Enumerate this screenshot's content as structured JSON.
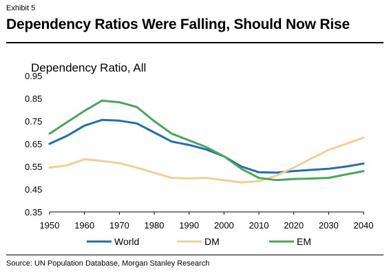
{
  "header": {
    "exhibit": "Exhibit 5",
    "title": "Dependency Ratios Were Falling, Should Now Rise"
  },
  "footer": {
    "source": "Source: UN Population Database, Morgan Stanley Research"
  },
  "chart_data": {
    "type": "line",
    "title": "",
    "xlabel": "",
    "ylabel": "Dependency Ratio, All",
    "xlim": [
      1950,
      2040
    ],
    "ylim": [
      0.35,
      0.95
    ],
    "xticks": [
      "1950",
      "1960",
      "1970",
      "1980",
      "1990",
      "2000",
      "2010",
      "2020",
      "2030",
      "2040"
    ],
    "yticks": [
      "0.95",
      "0.85",
      "0.75",
      "0.65",
      "0.55",
      "0.45",
      "0.35"
    ],
    "grid": false,
    "legend": "bottom",
    "x": [
      1950,
      1955,
      1960,
      1965,
      1970,
      1975,
      1980,
      1985,
      1990,
      1995,
      2000,
      2005,
      2010,
      2015,
      2020,
      2025,
      2030,
      2035,
      2040
    ],
    "series": [
      {
        "name": "World",
        "color": "#1f6fa8",
        "values": [
          0.65,
          0.685,
          0.73,
          0.755,
          0.752,
          0.74,
          0.7,
          0.66,
          0.645,
          0.625,
          0.595,
          0.55,
          0.525,
          0.523,
          0.53,
          0.535,
          0.54,
          0.55,
          0.563
        ]
      },
      {
        "name": "DM",
        "color": "#ecd096",
        "values": [
          0.545,
          0.555,
          0.582,
          0.575,
          0.565,
          0.545,
          0.522,
          0.5,
          0.498,
          0.5,
          0.49,
          0.48,
          0.485,
          0.51,
          0.545,
          0.585,
          0.623,
          0.65,
          0.677
        ]
      },
      {
        "name": "EM",
        "color": "#4aa55c",
        "values": [
          0.695,
          0.745,
          0.795,
          0.84,
          0.833,
          0.812,
          0.75,
          0.695,
          0.665,
          0.635,
          0.595,
          0.54,
          0.5,
          0.49,
          0.495,
          0.497,
          0.5,
          0.515,
          0.53
        ]
      }
    ]
  }
}
